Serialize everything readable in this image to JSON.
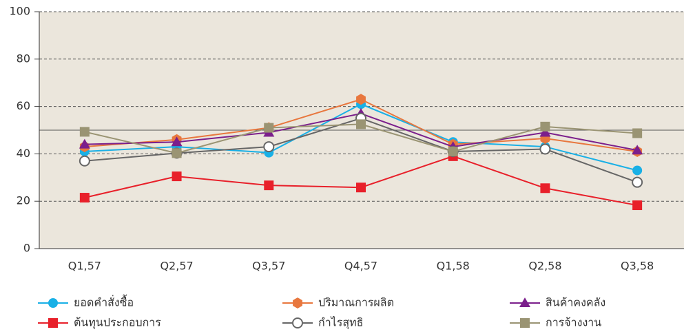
{
  "chart_data": {
    "type": "line",
    "categories": [
      "Q1,57",
      "Q2,57",
      "Q3,57",
      "Q4,57",
      "Q1,58",
      "Q2,58",
      "Q3,58"
    ],
    "series": [
      {
        "name": "ยอดคำสั่งซื้อ",
        "color": "#19b0e6",
        "marker": "circle",
        "values": [
          41,
          43,
          40.5,
          61,
          45,
          43,
          33
        ]
      },
      {
        "name": "ปริมาณการผลิต",
        "color": "#e8773e",
        "marker": "hexagon",
        "values": [
          43,
          46,
          51,
          63,
          44,
          46.5,
          41
        ]
      },
      {
        "name": "สินค้าคงคลัง",
        "color": "#7b1f8c",
        "marker": "triangle",
        "values": [
          44,
          45,
          49,
          57,
          43,
          49,
          41.5
        ]
      },
      {
        "name": "ต้นทุนประกอบการ",
        "color": "#e8202a",
        "marker": "square",
        "values": [
          21.5,
          30.5,
          26.7,
          25.8,
          39,
          25.5,
          18.3
        ]
      },
      {
        "name": "กำไรสุทธิ",
        "color": "#666666",
        "marker": "open-circle",
        "values": [
          37,
          40.3,
          43,
          55,
          41,
          42,
          28
        ]
      },
      {
        "name": "การจ้างงาน",
        "color": "#9a9473",
        "marker": "square",
        "values": [
          49.3,
          40.3,
          51,
          52.5,
          41,
          51.5,
          48.7
        ]
      }
    ],
    "ylim": [
      0,
      100
    ],
    "yticks": [
      0,
      20,
      40,
      60,
      80,
      100
    ],
    "grid": true,
    "reference_line": 50
  }
}
